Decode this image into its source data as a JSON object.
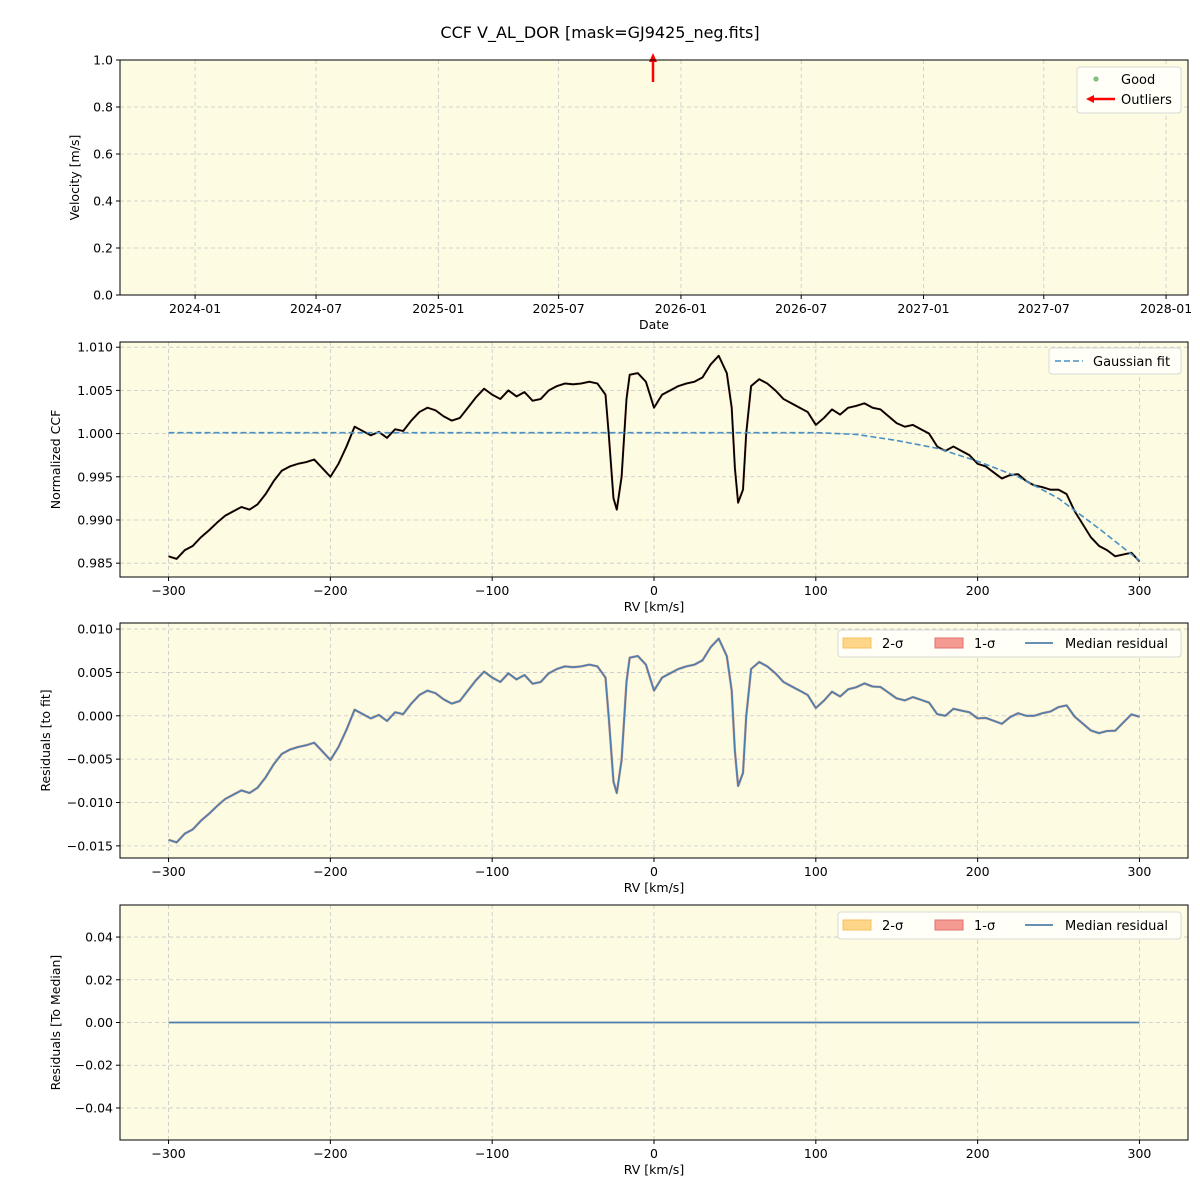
{
  "title": "CCF V_AL_DOR [mask=GJ9425_neg.fits]",
  "colors": {
    "background": "#fdfbe2",
    "ccf": "#000000",
    "fit": "#4a90c4",
    "median": "#4f7fae",
    "two_sigma": "#fdd68a",
    "one_sigma": "#f59a90",
    "good": "#5fb060",
    "outlier": "#ff0000"
  },
  "chart_data": [
    {
      "type": "scatter",
      "xlabel": "Date",
      "ylabel": "Velocity [m/s]",
      "xlim": [
        "2023-09-10",
        "2028-02-03"
      ],
      "ylim": [
        0,
        1
      ],
      "xticks": [
        "2024-01",
        "2024-07",
        "2025-01",
        "2025-07",
        "2026-01",
        "2026-07",
        "2027-01",
        "2027-07",
        "2028-01"
      ],
      "yticks": [
        "0.0",
        "0.2",
        "0.4",
        "0.6",
        "0.8",
        "1.0"
      ],
      "grid": true,
      "legend": {
        "placement": "top-right",
        "entries": [
          "Good",
          "Outliers"
        ]
      },
      "good_points": [],
      "outliers": [
        {
          "date": "2025-11-20",
          "direction": "up"
        }
      ]
    },
    {
      "type": "line",
      "xlabel": "RV [km/s]",
      "ylabel": "Normalized CCF",
      "xlim": [
        -330,
        330
      ],
      "ylim": [
        0.9834,
        1.0106
      ],
      "xticks": [
        "−300",
        "−200",
        "−100",
        "0",
        "100",
        "200",
        "300"
      ],
      "yticks": [
        "0.985",
        "0.990",
        "0.995",
        "1.000",
        "1.005",
        "1.010"
      ],
      "grid": true,
      "legend": {
        "placement": "top-right",
        "entries": [
          "Gaussian fit"
        ]
      },
      "ccf": {
        "x": [
          -300,
          -295,
          -290,
          -285,
          -280,
          -275,
          -270,
          -265,
          -260,
          -255,
          -250,
          -245,
          -240,
          -235,
          -230,
          -225,
          -220,
          -215,
          -210,
          -205,
          -200,
          -195,
          -190,
          -185,
          -180,
          -175,
          -170,
          -165,
          -160,
          -155,
          -150,
          -145,
          -140,
          -135,
          -130,
          -125,
          -120,
          -115,
          -110,
          -105,
          -100,
          -95,
          -90,
          -85,
          -80,
          -75,
          -70,
          -65,
          -60,
          -55,
          -50,
          -45,
          -40,
          -35,
          -30,
          -28,
          -25,
          -23,
          -20,
          -17,
          -15,
          -10,
          -5,
          0,
          5,
          10,
          15,
          20,
          25,
          30,
          35,
          40,
          45,
          48,
          50,
          52,
          55,
          57,
          60,
          65,
          70,
          75,
          80,
          85,
          90,
          95,
          100,
          105,
          110,
          115,
          120,
          125,
          130,
          135,
          140,
          145,
          150,
          155,
          160,
          165,
          170,
          175,
          180,
          185,
          190,
          195,
          200,
          205,
          210,
          215,
          220,
          225,
          230,
          235,
          240,
          245,
          250,
          255,
          260,
          265,
          270,
          275,
          280,
          285,
          290,
          295,
          300
        ],
        "y": [
          0.9858,
          0.9855,
          0.9865,
          0.987,
          0.988,
          0.9888,
          0.9897,
          0.9905,
          0.991,
          0.9915,
          0.9912,
          0.9918,
          0.993,
          0.9945,
          0.9957,
          0.9962,
          0.9965,
          0.9967,
          0.997,
          0.996,
          0.995,
          0.9965,
          0.9985,
          1.0008,
          1.0003,
          0.9998,
          1.0002,
          0.9995,
          1.0005,
          1.0003,
          1.0015,
          1.0025,
          1.003,
          1.0027,
          1.002,
          1.0015,
          1.0018,
          1.003,
          1.0042,
          1.0052,
          1.0045,
          1.004,
          1.005,
          1.0043,
          1.0048,
          1.0038,
          1.004,
          1.005,
          1.0055,
          1.0058,
          1.0057,
          1.0058,
          1.006,
          1.0058,
          1.0045,
          1.0,
          0.9925,
          0.9912,
          0.995,
          1.004,
          1.0068,
          1.007,
          1.006,
          1.003,
          1.0045,
          1.005,
          1.0055,
          1.0058,
          1.006,
          1.0065,
          1.008,
          1.009,
          1.007,
          1.003,
          0.996,
          0.992,
          0.9935,
          1.0,
          1.0055,
          1.0063,
          1.0058,
          1.005,
          1.004,
          1.0035,
          1.003,
          1.0025,
          1.001,
          1.0018,
          1.0028,
          1.0022,
          1.003,
          1.0032,
          1.0035,
          1.003,
          1.0028,
          1.002,
          1.0012,
          1.0008,
          1.001,
          1.0005,
          1.0,
          0.9985,
          0.998,
          0.9985,
          0.998,
          0.9975,
          0.9965,
          0.9962,
          0.9955,
          0.9948,
          0.9952,
          0.9953,
          0.9945,
          0.994,
          0.9938,
          0.9935,
          0.9935,
          0.993,
          0.991,
          0.9895,
          0.988,
          0.987,
          0.9865,
          0.9858,
          0.986,
          0.9862,
          0.9852
        ]
      },
      "gaussian_fit": {
        "name": "Gaussian fit",
        "x": [
          -300,
          -200,
          -100,
          0,
          100,
          125,
          150,
          175,
          200,
          225,
          250,
          275,
          300
        ],
        "y": [
          1.0001,
          1.0001,
          1.0001,
          1.0001,
          1.0001,
          0.9999,
          0.9992,
          0.9983,
          0.9968,
          0.995,
          0.9925,
          0.989,
          0.9853
        ]
      }
    },
    {
      "type": "line",
      "xlabel": "RV [km/s]",
      "ylabel": "Residuals [to fit]",
      "xlim": [
        -330,
        330
      ],
      "ylim": [
        -0.0164,
        0.0107
      ],
      "xticks": [
        "−300",
        "−200",
        "−100",
        "0",
        "100",
        "200",
        "300"
      ],
      "yticks": [
        "−0.015",
        "−0.010",
        "−0.005",
        "0.000",
        "0.005",
        "0.010"
      ],
      "grid": true,
      "legend": {
        "placement": "top-right",
        "entries": [
          "2-σ",
          "1-σ",
          "Median residual"
        ]
      },
      "series": "ccf minus gaussian_fit"
    },
    {
      "type": "line",
      "xlabel": "RV [km/s]",
      "ylabel": "Residuals [To Median]",
      "xlim": [
        -330,
        330
      ],
      "ylim": [
        -0.055,
        0.055
      ],
      "xticks": [
        "−300",
        "−200",
        "−100",
        "0",
        "100",
        "200",
        "300"
      ],
      "yticks": [
        "−0.04",
        "−0.02",
        "0.00",
        "0.02",
        "0.04"
      ],
      "grid": true,
      "legend": {
        "placement": "top-right",
        "entries": [
          "2-σ",
          "1-σ",
          "Median residual"
        ]
      },
      "median_residual": {
        "x": [
          -300,
          300
        ],
        "y": [
          0,
          0
        ]
      }
    }
  ]
}
